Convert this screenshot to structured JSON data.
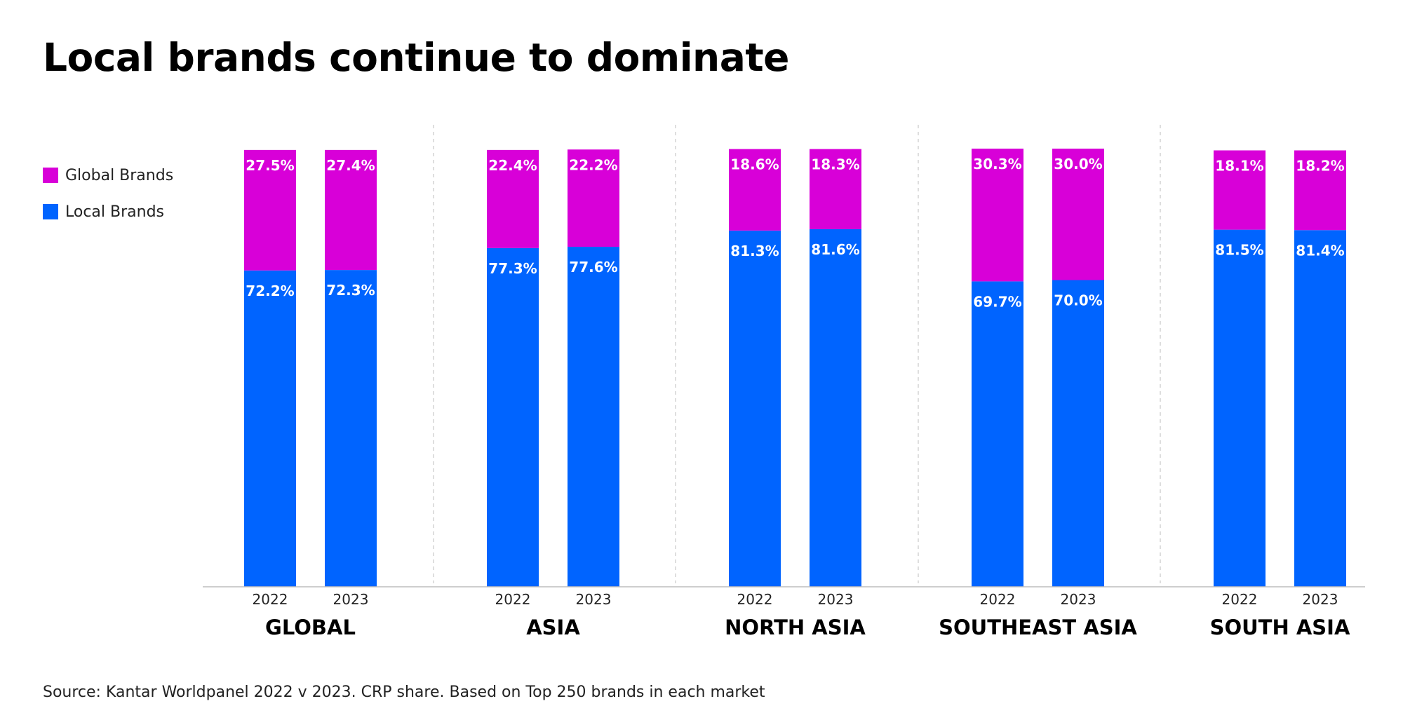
{
  "title": "Local brands continue to dominate",
  "source": "Source: Kantar Worldpanel 2022 v 2023. CRP share. Based on Top 250 brands in each market",
  "legend": [
    {
      "name": "Global Brands",
      "color": "#d800d8"
    },
    {
      "name": "Local Brands",
      "color": "#0064ff"
    }
  ],
  "chart_data": {
    "type": "bar",
    "stacked": true,
    "ylim": [
      0,
      100
    ],
    "grid": false,
    "legend_position": "top-left",
    "groups": [
      {
        "name": "GLOBAL",
        "categories": [
          "2022",
          "2023"
        ],
        "series": [
          {
            "name": "Local Brands",
            "values": [
              72.2,
              72.3
            ],
            "labels": [
              "72.2%",
              "72.3%"
            ]
          },
          {
            "name": "Global Brands",
            "values": [
              27.5,
              27.4
            ],
            "labels": [
              "27.5%",
              "27.4%"
            ]
          }
        ]
      },
      {
        "name": "ASIA",
        "categories": [
          "2022",
          "2023"
        ],
        "series": [
          {
            "name": "Local Brands",
            "values": [
              77.3,
              77.6
            ],
            "labels": [
              "77.3%",
              "77.6%"
            ]
          },
          {
            "name": "Global Brands",
            "values": [
              22.4,
              22.2
            ],
            "labels": [
              "22.4%",
              "22.2%"
            ]
          }
        ]
      },
      {
        "name": "NORTH ASIA",
        "categories": [
          "2022",
          "2023"
        ],
        "series": [
          {
            "name": "Local Brands",
            "values": [
              81.3,
              81.6
            ],
            "labels": [
              "81.3%",
              "81.6%"
            ]
          },
          {
            "name": "Global Brands",
            "values": [
              18.6,
              18.3
            ],
            "labels": [
              "18.6%",
              "18.3%"
            ]
          }
        ]
      },
      {
        "name": "SOUTHEAST ASIA",
        "categories": [
          "2022",
          "2023"
        ],
        "series": [
          {
            "name": "Local Brands",
            "values": [
              69.7,
              70.0
            ],
            "labels": [
              "69.7%",
              "70.0%"
            ]
          },
          {
            "name": "Global Brands",
            "values": [
              30.3,
              30.0
            ],
            "labels": [
              "30.3%",
              "30.0%"
            ]
          }
        ]
      },
      {
        "name": "SOUTH ASIA",
        "categories": [
          "2022",
          "2023"
        ],
        "series": [
          {
            "name": "Local Brands",
            "values": [
              81.5,
              81.4
            ],
            "labels": [
              "81.5%",
              "81.4%"
            ]
          },
          {
            "name": "Global Brands",
            "values": [
              18.1,
              18.2
            ],
            "labels": [
              "18.1%",
              "18.2%"
            ]
          }
        ]
      }
    ]
  }
}
